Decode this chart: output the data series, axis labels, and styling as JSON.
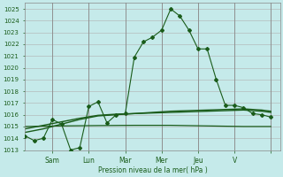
{
  "background_color": "#c5eaea",
  "grid_color": "#b0b0b0",
  "line_color": "#1a5c1a",
  "xlabel": "Pression niveau de la mer( hPa )",
  "ylim": [
    1013,
    1025.5
  ],
  "yticks": [
    1013,
    1014,
    1015,
    1016,
    1017,
    1018,
    1019,
    1020,
    1021,
    1022,
    1023,
    1024,
    1025
  ],
  "x_tick_positions": [
    3,
    7,
    11,
    15,
    19,
    23,
    27
  ],
  "x_tick_labels": [
    "Sam",
    "Lun",
    "Mar",
    "Mer",
    "Jeu",
    "V",
    ""
  ],
  "xlim": [
    0,
    28
  ],
  "forecast_x": [
    0,
    1,
    2,
    3,
    4,
    5,
    6,
    7,
    8,
    9,
    10,
    11,
    12,
    13,
    14,
    15,
    16,
    17,
    18,
    19,
    20,
    21,
    22,
    23,
    24,
    25,
    26,
    27
  ],
  "forecast_y": [
    1014.2,
    1013.8,
    1014.0,
    1015.6,
    1015.2,
    1013.0,
    1013.2,
    1016.7,
    1017.1,
    1015.3,
    1016.0,
    1016.1,
    1020.9,
    1022.2,
    1022.6,
    1023.2,
    1025.0,
    1024.4,
    1023.2,
    1021.6,
    1021.6,
    1019.0,
    1016.8,
    1016.8,
    1016.6,
    1016.1,
    1016.0,
    1015.8
  ],
  "smooth1_x": [
    0,
    2,
    4,
    6,
    8,
    10,
    12,
    14,
    16,
    18,
    20,
    22,
    24,
    26,
    27
  ],
  "smooth1_y": [
    1014.5,
    1014.8,
    1015.2,
    1015.6,
    1015.9,
    1016.0,
    1016.1,
    1016.2,
    1016.3,
    1016.35,
    1016.4,
    1016.45,
    1016.5,
    1016.4,
    1016.3
  ],
  "smooth2_x": [
    0,
    2,
    4,
    6,
    8,
    10,
    12,
    14,
    16,
    18,
    20,
    22,
    24,
    26,
    27
  ],
  "smooth2_y": [
    1014.8,
    1015.1,
    1015.4,
    1015.7,
    1015.95,
    1016.05,
    1016.1,
    1016.15,
    1016.2,
    1016.25,
    1016.3,
    1016.35,
    1016.4,
    1016.3,
    1016.2
  ],
  "smooth3_x": [
    0,
    4,
    8,
    12,
    16,
    20,
    24,
    27
  ],
  "smooth3_y": [
    1015.0,
    1015.05,
    1015.08,
    1015.1,
    1015.1,
    1015.05,
    1015.0,
    1015.0
  ],
  "figsize": [
    3.2,
    2.0
  ],
  "dpi": 100
}
